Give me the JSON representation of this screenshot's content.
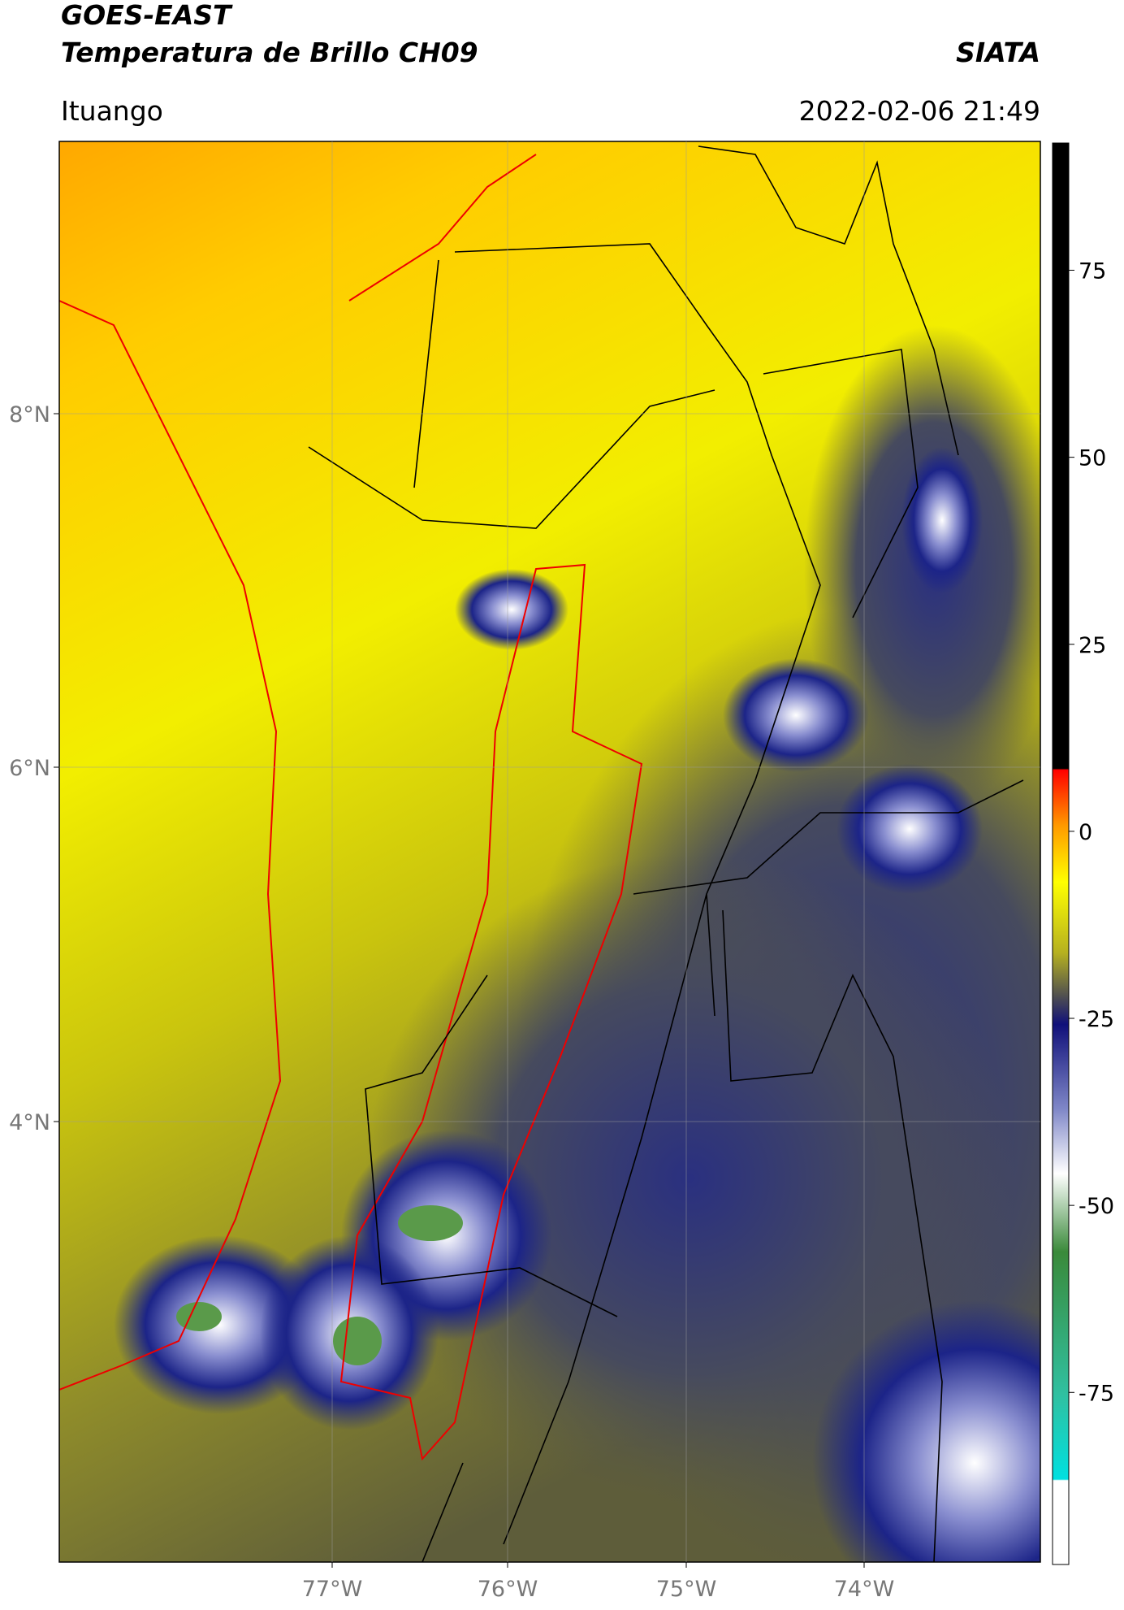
{
  "header": {
    "title": "GOES-EAST",
    "subtitle": "Temperatura de Brillo CH09",
    "source": "SIATA",
    "region": "Ituango",
    "datetime": "2022-02-06 21:49"
  },
  "map": {
    "lat_labels": [
      "8°N",
      "6°N",
      "4°N"
    ],
    "lon_labels": [
      "77°W",
      "76°W",
      "75°W",
      "74°W"
    ]
  },
  "colorbar": {
    "lim": [
      -98,
      92
    ],
    "ticks": [
      75,
      50,
      25,
      0,
      -25,
      -50,
      -75
    ]
  }
}
